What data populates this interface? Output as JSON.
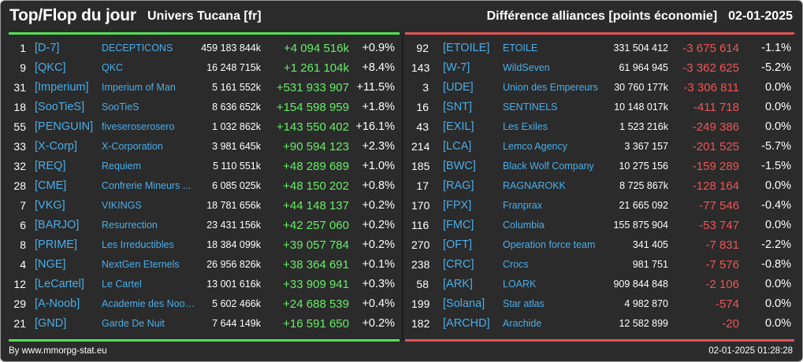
{
  "header": {
    "title": "Top/Flop du jour",
    "universe": "Univers Tucana [fr]",
    "subtitle": "Différence alliances [points économie]",
    "date": "02-01-2025"
  },
  "colors": {
    "positive": "#66ee66",
    "negative": "#ee5555",
    "tag": "#4aaeea",
    "background": "#2b2b2b"
  },
  "top": [
    {
      "rank": "1",
      "tag": "[D-7]",
      "name": "DECEPTICONS",
      "points": "459 183 844k",
      "diff": "+4 094 516k",
      "pct": "+0.9%"
    },
    {
      "rank": "9",
      "tag": "[QKC]",
      "name": "QKC",
      "points": "16 248 715k",
      "diff": "+1 261 104k",
      "pct": "+8.4%"
    },
    {
      "rank": "31",
      "tag": "[Imperium]",
      "name": "Imperium of Man",
      "points": "5 161 552k",
      "diff": "+531 933 907",
      "pct": "+11.5%"
    },
    {
      "rank": "18",
      "tag": "[SooTieS]",
      "name": "SooTieS",
      "points": "8 636 652k",
      "diff": "+154 598 959",
      "pct": "+1.8%"
    },
    {
      "rank": "55",
      "tag": "[PENGUIN]",
      "name": "fiveseroserosero",
      "points": "1 032 862k",
      "diff": "+143 550 402",
      "pct": "+16.1%"
    },
    {
      "rank": "33",
      "tag": "[X-Corp]",
      "name": "X-Corporation",
      "points": "3 981 645k",
      "diff": "+90 594 123",
      "pct": "+2.3%"
    },
    {
      "rank": "32",
      "tag": "[REQ]",
      "name": "Requiem",
      "points": "5 110 551k",
      "diff": "+48 289 689",
      "pct": "+1.0%"
    },
    {
      "rank": "28",
      "tag": "[CME]",
      "name": "Confrerie Mineurs ...",
      "points": "6 085 025k",
      "diff": "+48 150 202",
      "pct": "+0.8%"
    },
    {
      "rank": "7",
      "tag": "[VKG]",
      "name": "VIKINGS",
      "points": "18 781 656k",
      "diff": "+44 148 137",
      "pct": "+0.2%"
    },
    {
      "rank": "6",
      "tag": "[BARJO]",
      "name": "Resurrection",
      "points": "23 431 156k",
      "diff": "+42 257 060",
      "pct": "+0.2%"
    },
    {
      "rank": "8",
      "tag": "[PRIME]",
      "name": "Les Irreductibles",
      "points": "18 384 099k",
      "diff": "+39 057 784",
      "pct": "+0.2%"
    },
    {
      "rank": "4",
      "tag": "[NGE]",
      "name": "NextGen Eternels",
      "points": "26 956 826k",
      "diff": "+38 364 691",
      "pct": "+0.1%"
    },
    {
      "rank": "12",
      "tag": "[LeCartel]",
      "name": "Le Cartel",
      "points": "13 001 616k",
      "diff": "+33 909 941",
      "pct": "+0.3%"
    },
    {
      "rank": "29",
      "tag": "[A-Noob]",
      "name": "Academie des Noob...",
      "points": "5 602 466k",
      "diff": "+24 688 539",
      "pct": "+0.4%"
    },
    {
      "rank": "21",
      "tag": "[GND]",
      "name": "Garde De Nuit",
      "points": "7 644 149k",
      "diff": "+16 591 650",
      "pct": "+0.2%"
    }
  ],
  "flop": [
    {
      "rank": "92",
      "tag": "[ETOILE]",
      "name": "ETOILE",
      "points": "331 504 412",
      "diff": "-3 675 614",
      "pct": "-1.1%"
    },
    {
      "rank": "143",
      "tag": "[W-7]",
      "name": "WildSeven",
      "points": "61 964 945",
      "diff": "-3 362 625",
      "pct": "-5.2%"
    },
    {
      "rank": "3",
      "tag": "[UDE]",
      "name": "Union des Empereurs",
      "points": "30 760 177k",
      "diff": "-3 306 811",
      "pct": "0.0%"
    },
    {
      "rank": "16",
      "tag": "[SNT]",
      "name": "SENTINELS",
      "points": "10 148 017k",
      "diff": "-411 718",
      "pct": "0.0%"
    },
    {
      "rank": "43",
      "tag": "[EXIL]",
      "name": "Les Exiles",
      "points": "1 523 216k",
      "diff": "-249 386",
      "pct": "0.0%"
    },
    {
      "rank": "214",
      "tag": "[LCA]",
      "name": "Lemco Agency",
      "points": "3 367 157",
      "diff": "-201 525",
      "pct": "-5.7%"
    },
    {
      "rank": "185",
      "tag": "[BWC]",
      "name": "Black Wolf Company",
      "points": "10 275 156",
      "diff": "-159 289",
      "pct": "-1.5%"
    },
    {
      "rank": "17",
      "tag": "[RAG]",
      "name": "RAGNAROKK",
      "points": "8 725 867k",
      "diff": "-128 164",
      "pct": "0.0%"
    },
    {
      "rank": "170",
      "tag": "[FPX]",
      "name": "Franprax",
      "points": "21 665 092",
      "diff": "-77 546",
      "pct": "-0.4%"
    },
    {
      "rank": "116",
      "tag": "[FMC]",
      "name": "Columbia",
      "points": "155 875 904",
      "diff": "-53 747",
      "pct": "0.0%"
    },
    {
      "rank": "270",
      "tag": "[OFT]",
      "name": "Operation force team",
      "points": "341 405",
      "diff": "-7 831",
      "pct": "-2.2%"
    },
    {
      "rank": "238",
      "tag": "[CRC]",
      "name": "Crocs",
      "points": "981 751",
      "diff": "-7 576",
      "pct": "-0.8%"
    },
    {
      "rank": "58",
      "tag": "[ARK]",
      "name": "LOARK",
      "points": "909 844 848",
      "diff": "-2 106",
      "pct": "0.0%"
    },
    {
      "rank": "199",
      "tag": "[Solana]",
      "name": "Star atlas",
      "points": "4 982 870",
      "diff": "-574",
      "pct": "0.0%"
    },
    {
      "rank": "182",
      "tag": "[ARCHD]",
      "name": "Arachide",
      "points": "12 582 899",
      "diff": "-20",
      "pct": "0.0%"
    }
  ],
  "footer": {
    "source": "By www.mmorpg-stat.eu",
    "timestamp": "02-01-2025 01:28:28"
  }
}
